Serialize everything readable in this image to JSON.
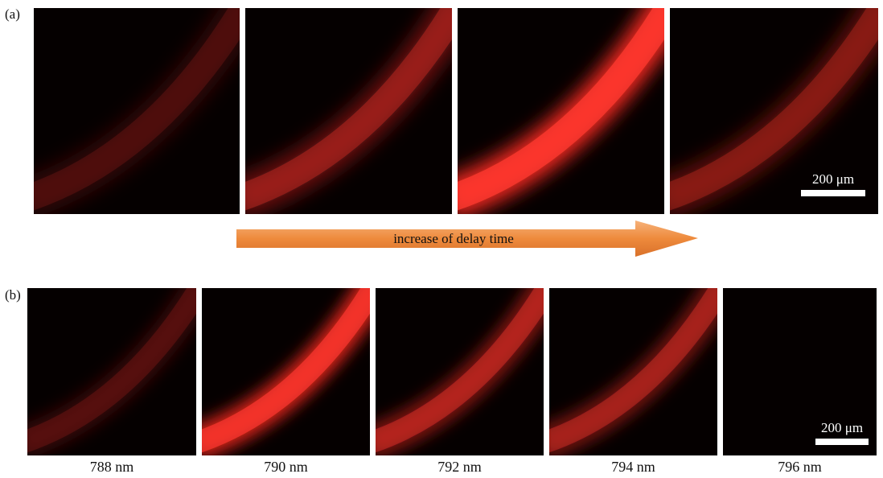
{
  "panel_a": {
    "label": "(a)",
    "scale_bar": "200 μm"
  },
  "arrow": {
    "label": "increase of delay time"
  },
  "panel_b": {
    "label": "(b)",
    "scale_bar": "200 μm",
    "captions": [
      "788 nm",
      "790 nm",
      "792 nm",
      "794 nm",
      "796 nm"
    ]
  }
}
